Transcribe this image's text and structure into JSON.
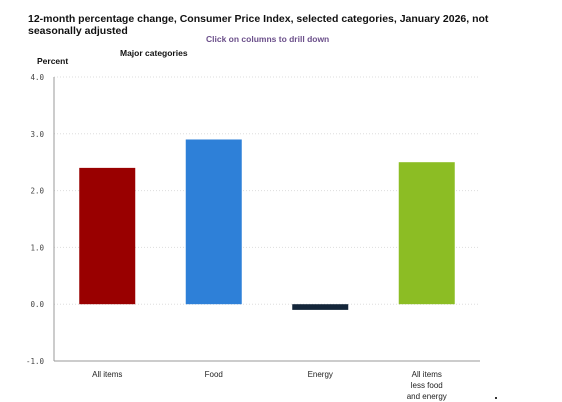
{
  "header": {
    "title": "12-month percentage change, Consumer Price Index, selected categories, January 2026, not seasonally adjusted",
    "drill_hint": "Click on columns to drill down"
  },
  "chart_data": {
    "type": "bar",
    "title": "12-month percentage change, Consumer Price Index, selected categories, January 2026, not seasonally adjusted",
    "subtitle": "Major categories",
    "ylabel": "Percent",
    "xlabel": "",
    "ylim": [
      -1.0,
      4.0
    ],
    "yticks": [
      4.0,
      3.0,
      2.0,
      1.0,
      0.0,
      -1.0
    ],
    "ytick_labels": [
      "4.0",
      "3.0",
      "2.0",
      "1.0",
      "0.0",
      "-1.0"
    ],
    "grid": true,
    "categories": [
      [
        "All items"
      ],
      [
        "Food"
      ],
      [
        "Energy"
      ],
      [
        "All items",
        "less food",
        "and energy"
      ]
    ],
    "values": [
      2.4,
      2.9,
      -0.1,
      2.5
    ],
    "colors": [
      "#990000",
      "#2e80d8",
      "#14263a",
      "#8cbd24"
    ]
  }
}
